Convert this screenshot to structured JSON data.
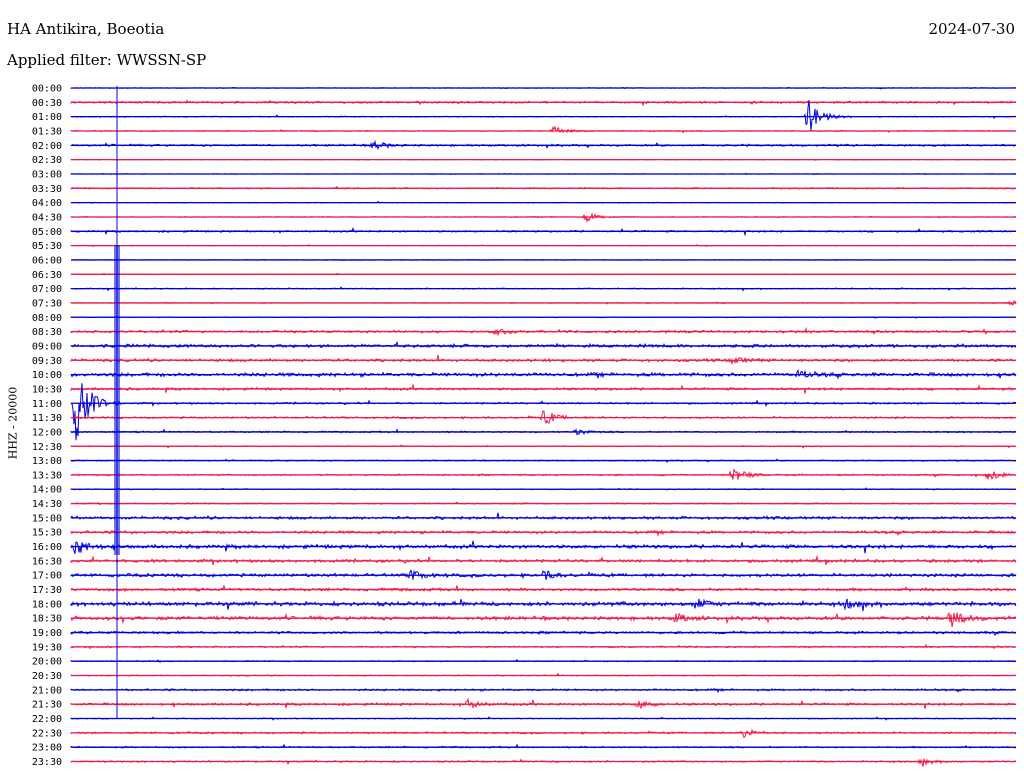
{
  "header": {
    "station": "HA Antikira, Boeotia",
    "date": "2024-07-30",
    "filter": "Applied filter: WWSSN-SP",
    "channel": "HHZ - 20000"
  },
  "colors": {
    "odd": "#0000dd",
    "even": "#ee1a4a"
  },
  "chart_data": {
    "type": "line",
    "title": "HA Antikira, Boeotia",
    "subtitle": "Applied filter: WWSSN-SP",
    "ylabel": "HHZ - 20000",
    "rows": [
      "00:00",
      "00:30",
      "01:00",
      "01:30",
      "02:00",
      "02:30",
      "03:00",
      "03:30",
      "04:00",
      "04:30",
      "05:00",
      "05:30",
      "06:00",
      "06:30",
      "07:00",
      "07:30",
      "08:00",
      "08:30",
      "09:00",
      "09:30",
      "10:00",
      "10:30",
      "11:00",
      "11:30",
      "12:00",
      "12:30",
      "13:00",
      "13:30",
      "14:00",
      "14:30",
      "15:00",
      "15:30",
      "16:00",
      "16:30",
      "17:00",
      "17:30",
      "18:00",
      "18:30",
      "19:00",
      "19:30",
      "20:00",
      "20:30",
      "21:00",
      "21:30",
      "22:00",
      "22:30",
      "23:00",
      "23:30"
    ],
    "noise": [
      0.4,
      1.0,
      0.5,
      0.5,
      1.0,
      0.3,
      0.3,
      0.7,
      0.3,
      0.4,
      0.9,
      0.3,
      0.3,
      0.3,
      0.6,
      0.4,
      0.4,
      1.2,
      1.6,
      1.4,
      1.8,
      1.2,
      0.9,
      0.9,
      0.8,
      0.5,
      0.6,
      0.8,
      0.5,
      0.6,
      1.4,
      1.4,
      1.8,
      1.5,
      1.6,
      1.4,
      2.0,
      1.8,
      1.2,
      0.8,
      0.6,
      0.5,
      1.0,
      1.2,
      0.5,
      0.9,
      0.8,
      0.8
    ],
    "events": [
      {
        "row": "01:00",
        "x": 0.78,
        "amp": 18
      },
      {
        "row": "01:30",
        "x": 0.51,
        "amp": 5
      },
      {
        "row": "02:00",
        "x": 0.32,
        "amp": 4
      },
      {
        "row": "04:30",
        "x": 0.545,
        "amp": 5
      },
      {
        "row": "07:30",
        "x": 0.995,
        "amp": 4
      },
      {
        "row": "08:30",
        "x": 0.45,
        "amp": 3
      },
      {
        "row": "09:30",
        "x": 0.7,
        "amp": 4
      },
      {
        "row": "10:00",
        "x": 0.77,
        "amp": 4
      },
      {
        "row": "11:00",
        "x": 0.005,
        "amp": 40
      },
      {
        "row": "11:30",
        "x": 0.5,
        "amp": 8
      },
      {
        "row": "12:00",
        "x": 0.535,
        "amp": 3
      },
      {
        "row": "13:30",
        "x": 0.7,
        "amp": 8
      },
      {
        "row": "13:30",
        "x": 0.97,
        "amp": 5
      },
      {
        "row": "16:00",
        "x": 0.005,
        "amp": 8
      },
      {
        "row": "17:00",
        "x": 0.36,
        "amp": 5
      },
      {
        "row": "17:00",
        "x": 0.5,
        "amp": 4
      },
      {
        "row": "18:00",
        "x": 0.66,
        "amp": 5
      },
      {
        "row": "18:00",
        "x": 0.82,
        "amp": 4
      },
      {
        "row": "18:30",
        "x": 0.64,
        "amp": 4
      },
      {
        "row": "18:30",
        "x": 0.93,
        "amp": 9
      },
      {
        "row": "21:30",
        "x": 0.42,
        "amp": 4
      },
      {
        "row": "21:30",
        "x": 0.6,
        "amp": 4
      },
      {
        "row": "22:30",
        "x": 0.71,
        "amp": 5
      },
      {
        "row": "23:30",
        "x": 0.9,
        "amp": 3
      }
    ]
  }
}
